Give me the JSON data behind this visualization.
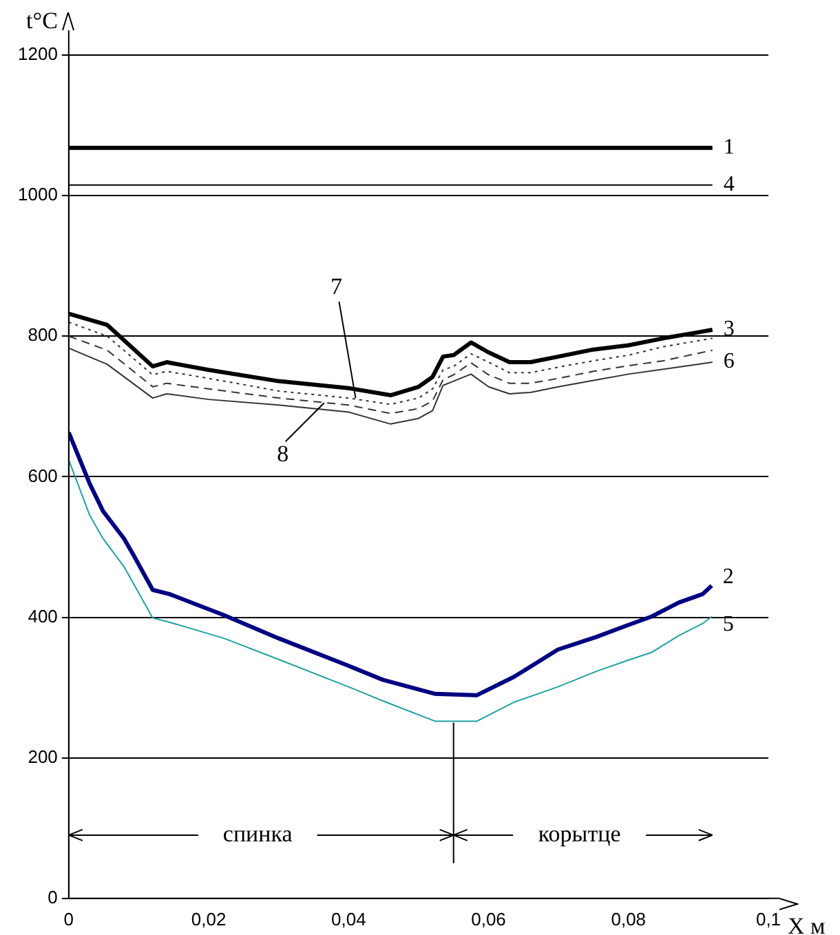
{
  "chart_data": {
    "type": "line",
    "xlabel": "X м",
    "ylabel": "t°C",
    "xlim": [
      0,
      0.1
    ],
    "ylim": [
      0,
      1200
    ],
    "xticks": [
      0,
      {
        "value": 0.02,
        "label": "0,02"
      },
      {
        "value": 0.04,
        "label": "0,04"
      },
      {
        "value": 0.06,
        "label": "0,06"
      },
      {
        "value": 0.08,
        "label": "0,08"
      },
      {
        "value": 0.1,
        "label": "0,1"
      }
    ],
    "yticks": [
      0,
      200,
      400,
      600,
      800,
      1000,
      1200
    ],
    "grid": "y",
    "legend": false,
    "marker": "none",
    "line_style": "solid",
    "series": [
      {
        "name": "1",
        "color": "#000000",
        "x": [
          0,
          0.092
        ],
        "values": [
          1068,
          1068
        ]
      },
      {
        "name": "4",
        "color": "#000000",
        "x": [
          0,
          0.092
        ],
        "values": [
          1015,
          1015
        ]
      },
      {
        "name": "3",
        "color": "#000000",
        "x": [
          0,
          0.0055,
          0.012,
          0.014,
          0.02,
          0.03,
          0.04,
          0.046,
          0.05,
          0.052,
          0.0535,
          0.055,
          0.0575,
          0.06,
          0.063,
          0.066,
          0.07,
          0.075,
          0.08,
          0.085,
          0.092
        ],
        "values": [
          832,
          816,
          757,
          763,
          752,
          736,
          726,
          716,
          728,
          742,
          771,
          773,
          791,
          777,
          763,
          763,
          771,
          781,
          787,
          797,
          809
        ]
      },
      {
        "name": "6",
        "color": "#333333",
        "x": [
          0,
          0.0055,
          0.012,
          0.014,
          0.02,
          0.03,
          0.04,
          0.046,
          0.05,
          0.052,
          0.0535,
          0.055,
          0.0575,
          0.06,
          0.063,
          0.066,
          0.07,
          0.075,
          0.08,
          0.085,
          0.092
        ],
        "values": [
          783,
          760,
          712,
          718,
          710,
          702,
          692,
          675,
          683,
          694,
          730,
          736,
          746,
          728,
          718,
          720,
          728,
          737,
          746,
          753,
          763
        ]
      },
      {
        "color": "#333333",
        "line_style": "dotted",
        "x": [
          0,
          0.0055,
          0.012,
          0.014,
          0.02,
          0.03,
          0.04,
          0.046,
          0.05,
          0.052,
          0.0535,
          0.055,
          0.0575,
          0.06,
          0.063,
          0.066,
          0.07,
          0.075,
          0.08,
          0.085,
          0.092
        ],
        "values": [
          820,
          800,
          745,
          750,
          740,
          722,
          712,
          703,
          712,
          725,
          752,
          757,
          775,
          763,
          748,
          748,
          756,
          765,
          773,
          785,
          797
        ]
      },
      {
        "color": "#333333",
        "line_style": "dashed",
        "x": [
          0,
          0.0055,
          0.012,
          0.014,
          0.02,
          0.03,
          0.04,
          0.046,
          0.05,
          0.052,
          0.0535,
          0.055,
          0.0575,
          0.06,
          0.063,
          0.066,
          0.07,
          0.075,
          0.08,
          0.085,
          0.092
        ],
        "values": [
          800,
          780,
          728,
          733,
          725,
          712,
          702,
          690,
          697,
          708,
          738,
          745,
          762,
          745,
          733,
          733,
          740,
          750,
          758,
          765,
          780
        ]
      },
      {
        "name": "2",
        "color": "#000080",
        "x": [
          0,
          0.003,
          0.0049,
          0.0079,
          0.0094,
          0.012,
          0.0144,
          0.0222,
          0.03,
          0.04,
          0.0449,
          0.0524,
          0.0583,
          0.0636,
          0.0699,
          0.0754,
          0.0797,
          0.0833,
          0.0872,
          0.0906,
          0.0919
        ],
        "values": [
          663,
          590,
          551,
          512,
          486,
          439,
          433,
          403,
          370,
          331,
          311,
          291,
          289,
          315,
          354,
          372,
          388,
          401,
          421,
          433,
          445
        ]
      },
      {
        "name": "5",
        "color": "#20a0a0",
        "x": [
          0,
          0.003,
          0.0049,
          0.0079,
          0.012,
          0.0144,
          0.0222,
          0.03,
          0.04,
          0.0449,
          0.0524,
          0.0583,
          0.0636,
          0.0699,
          0.0754,
          0.0797,
          0.0833,
          0.0872,
          0.0906,
          0.0919
        ],
        "values": [
          624,
          545,
          512,
          472,
          399,
          393,
          370,
          340,
          301,
          281,
          252,
          252,
          279,
          301,
          323,
          338,
          350,
          374,
          391,
          401
        ]
      }
    ],
    "ref_lines": [
      {
        "axis": "x",
        "value": 0.055
      }
    ],
    "annotations": [
      {
        "text": "7",
        "x": 0.041,
        "y": 712
      },
      {
        "text": "8",
        "x": 0.0365,
        "y": 705
      },
      "спинка",
      "корытце"
    ]
  }
}
